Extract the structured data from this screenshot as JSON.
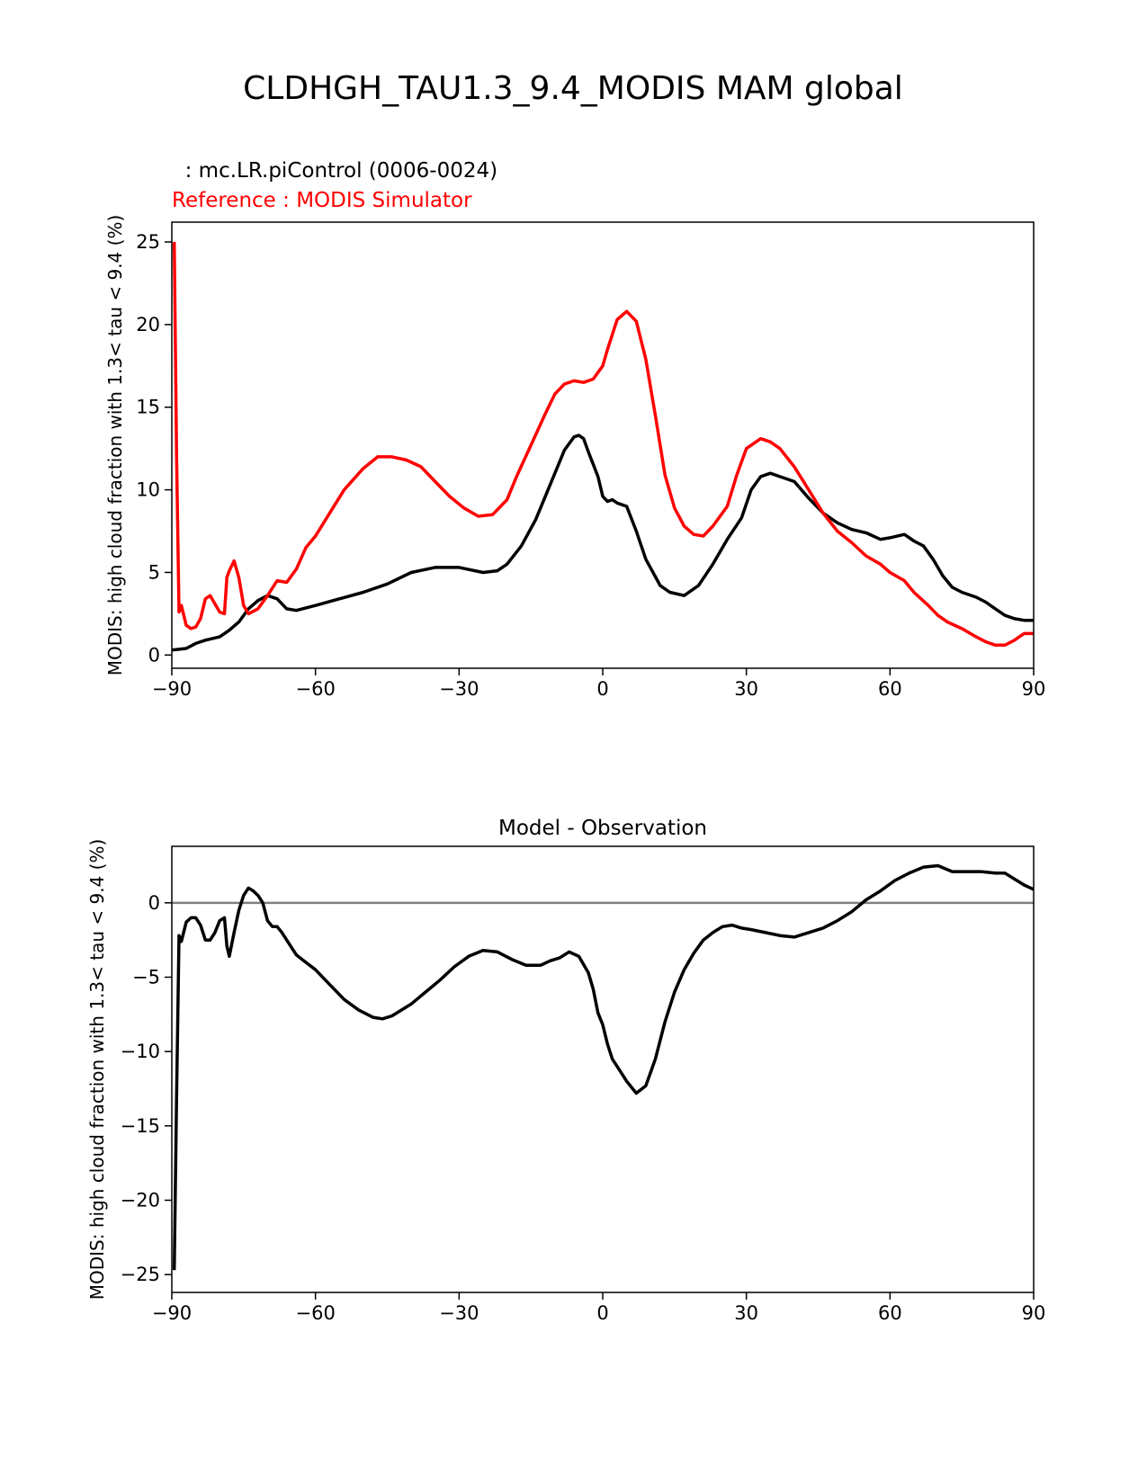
{
  "title": "CLDHGH_TAU1.3_9.4_MODIS MAM global",
  "colors": {
    "model": "#000000",
    "reference": "#ff0000",
    "zero_line": "#808080"
  },
  "chart_data": [
    {
      "type": "line",
      "test_label": "  : mc.LR.piControl (0006-0024)",
      "reference_label": "Reference : MODIS Simulator",
      "xlabel": "",
      "ylabel": "MODIS: high cloud fraction with 1.3< tau < 9.4 (%)",
      "xlim": [
        -90,
        90
      ],
      "ylim": [
        -0.8,
        26.2
      ],
      "xticks": [
        -90,
        -60,
        -30,
        0,
        30,
        60,
        90
      ],
      "xtick_labels": [
        "−90",
        "−60",
        "−30",
        "0",
        "30",
        "60",
        "90"
      ],
      "yticks": [
        0,
        5,
        10,
        15,
        20,
        25
      ],
      "ytick_labels": [
        "0",
        "5",
        "10",
        "15",
        "20",
        "25"
      ],
      "grid": false,
      "series": [
        {
          "key": "model",
          "x": [
            -90,
            -87,
            -85,
            -83,
            -80,
            -78,
            -76,
            -74,
            -72,
            -70,
            -68,
            -66,
            -64,
            -60,
            -55,
            -50,
            -45,
            -40,
            -35,
            -30,
            -25,
            -22,
            -20,
            -17,
            -14,
            -11,
            -8,
            -6,
            -5,
            -4,
            -3,
            -1,
            0,
            1,
            2,
            3,
            5,
            7,
            9,
            12,
            14,
            17,
            20,
            23,
            26,
            29,
            31,
            33,
            35,
            37,
            40,
            43,
            46,
            49,
            52,
            55,
            58,
            60,
            63,
            65,
            67,
            69,
            71,
            73,
            75,
            78,
            80,
            82,
            84,
            86,
            88,
            90
          ],
          "y": [
            0.3,
            0.4,
            0.7,
            0.9,
            1.1,
            1.5,
            2.0,
            2.8,
            3.3,
            3.6,
            3.4,
            2.8,
            2.7,
            3.0,
            3.4,
            3.8,
            4.3,
            5.0,
            5.3,
            5.3,
            5.0,
            5.1,
            5.5,
            6.6,
            8.2,
            10.3,
            12.4,
            13.2,
            13.3,
            13.1,
            12.3,
            10.8,
            9.6,
            9.3,
            9.4,
            9.2,
            9.0,
            7.5,
            5.8,
            4.2,
            3.8,
            3.6,
            4.2,
            5.5,
            7.0,
            8.3,
            10.0,
            10.8,
            11.0,
            10.8,
            10.5,
            9.5,
            8.6,
            8.0,
            7.6,
            7.4,
            7.0,
            7.1,
            7.3,
            6.9,
            6.6,
            5.8,
            4.8,
            4.1,
            3.8,
            3.5,
            3.2,
            2.8,
            2.4,
            2.2,
            2.1,
            2.1
          ]
        },
        {
          "key": "reference",
          "x": [
            -89.5,
            -89,
            -88.5,
            -88,
            -87,
            -86,
            -85,
            -84,
            -83,
            -82,
            -81,
            -80,
            -79,
            -78.5,
            -78,
            -77,
            -76,
            -75,
            -74,
            -72,
            -70,
            -68,
            -66,
            -64,
            -62,
            -60,
            -57,
            -54,
            -50,
            -47,
            -44,
            -41,
            -38,
            -35,
            -32,
            -29,
            -26,
            -23,
            -20,
            -18,
            -15,
            -12,
            -10,
            -8,
            -6,
            -4,
            -2,
            0,
            1,
            3,
            5,
            7,
            9,
            11,
            13,
            15,
            17,
            19,
            21,
            23,
            26,
            28,
            30,
            33,
            35,
            37,
            40,
            43,
            46,
            49,
            52,
            55,
            58,
            60,
            63,
            65,
            68,
            70,
            72,
            75,
            78,
            80,
            82,
            84,
            86,
            87,
            88,
            90
          ],
          "y": [
            25.0,
            12.0,
            2.6,
            3.0,
            1.8,
            1.6,
            1.7,
            2.2,
            3.4,
            3.6,
            3.1,
            2.6,
            2.5,
            4.7,
            5.1,
            5.7,
            4.7,
            3.0,
            2.5,
            2.8,
            3.6,
            4.5,
            4.4,
            5.2,
            6.5,
            7.2,
            8.6,
            10.0,
            11.3,
            12.0,
            12.0,
            11.8,
            11.4,
            10.5,
            9.6,
            8.9,
            8.4,
            8.5,
            9.4,
            10.8,
            12.7,
            14.6,
            15.8,
            16.4,
            16.6,
            16.5,
            16.7,
            17.5,
            18.5,
            20.3,
            20.8,
            20.2,
            17.9,
            14.5,
            10.9,
            8.9,
            7.8,
            7.3,
            7.2,
            7.8,
            9.0,
            10.9,
            12.5,
            13.1,
            12.9,
            12.5,
            11.4,
            10.0,
            8.6,
            7.5,
            6.8,
            6.0,
            5.5,
            5.0,
            4.5,
            3.8,
            3.0,
            2.4,
            2.0,
            1.6,
            1.1,
            0.8,
            0.6,
            0.6,
            0.9,
            1.1,
            1.3,
            1.3
          ]
        }
      ]
    },
    {
      "type": "line",
      "title": "Model - Observation",
      "xlabel": "",
      "ylabel": "MODIS: high cloud fraction with 1.3< tau < 9.4 (%)",
      "xlim": [
        -90,
        90
      ],
      "ylim": [
        -26.2,
        3.8
      ],
      "xticks": [
        -90,
        -60,
        -30,
        0,
        30,
        60,
        90
      ],
      "xtick_labels": [
        "−90",
        "−60",
        "−30",
        "0",
        "30",
        "60",
        "90"
      ],
      "yticks": [
        -25,
        -20,
        -15,
        -10,
        -5,
        0
      ],
      "ytick_labels": [
        "−25",
        "−20",
        "−15",
        "−10",
        "−5",
        "0"
      ],
      "grid": false,
      "zero_line": 0,
      "series": [
        {
          "key": "model",
          "x": [
            -89.5,
            -89,
            -88.5,
            -88,
            -87,
            -86,
            -85,
            -84,
            -83,
            -82,
            -81,
            -80,
            -79,
            -78.5,
            -78,
            -77,
            -76,
            -75,
            -74,
            -73,
            -72,
            -71,
            -70,
            -69,
            -68,
            -67,
            -66,
            -64,
            -62,
            -60,
            -57,
            -54,
            -51,
            -48,
            -46,
            -44,
            -42,
            -40,
            -37,
            -34,
            -31,
            -28,
            -25,
            -22,
            -19,
            -16,
            -13,
            -11,
            -9,
            -8,
            -7,
            -5,
            -3,
            -2,
            -1,
            0,
            1,
            2,
            3,
            5,
            7,
            9,
            11,
            13,
            15,
            17,
            19,
            21,
            23,
            25,
            27,
            29,
            31,
            34,
            37,
            40,
            43,
            46,
            49,
            52,
            55,
            58,
            61,
            64,
            67,
            70,
            73,
            76,
            79,
            82,
            84,
            86,
            88,
            90
          ],
          "y": [
            -24.7,
            -13.0,
            -2.2,
            -2.6,
            -1.3,
            -1.0,
            -1.0,
            -1.5,
            -2.5,
            -2.5,
            -2.0,
            -1.2,
            -1.0,
            -2.9,
            -3.6,
            -2.0,
            -0.5,
            0.5,
            1.0,
            0.8,
            0.5,
            0.0,
            -1.2,
            -1.6,
            -1.6,
            -2.0,
            -2.5,
            -3.5,
            -4.0,
            -4.5,
            -5.5,
            -6.5,
            -7.2,
            -7.7,
            -7.8,
            -7.6,
            -7.2,
            -6.8,
            -6.0,
            -5.2,
            -4.3,
            -3.6,
            -3.2,
            -3.3,
            -3.8,
            -4.2,
            -4.2,
            -3.9,
            -3.7,
            -3.5,
            -3.3,
            -3.6,
            -4.7,
            -5.8,
            -7.4,
            -8.2,
            -9.5,
            -10.5,
            -11.0,
            -12.0,
            -12.8,
            -12.3,
            -10.5,
            -8.0,
            -6.0,
            -4.5,
            -3.4,
            -2.5,
            -2.0,
            -1.6,
            -1.5,
            -1.7,
            -1.8,
            -2.0,
            -2.2,
            -2.3,
            -2.0,
            -1.7,
            -1.2,
            -0.6,
            0.2,
            0.8,
            1.5,
            2.0,
            2.4,
            2.5,
            2.1,
            2.1,
            2.1,
            2.0,
            2.0,
            1.6,
            1.2,
            0.9
          ]
        }
      ]
    }
  ]
}
